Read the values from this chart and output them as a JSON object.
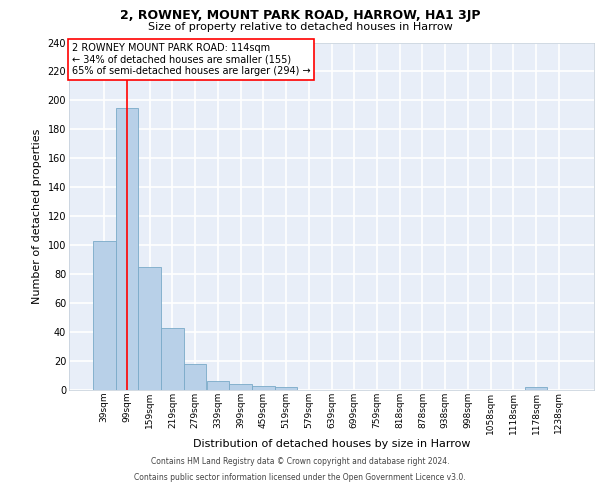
{
  "title1": "2, ROWNEY, MOUNT PARK ROAD, HARROW, HA1 3JP",
  "title2": "Size of property relative to detached houses in Harrow",
  "xlabel": "Distribution of detached houses by size in Harrow",
  "ylabel": "Number of detached properties",
  "bar_values": [
    103,
    195,
    85,
    43,
    18,
    6,
    4,
    3,
    2,
    0,
    0,
    0,
    0,
    0,
    0,
    0,
    0,
    0,
    0,
    2,
    0
  ],
  "bar_labels": [
    "39sqm",
    "99sqm",
    "159sqm",
    "219sqm",
    "279sqm",
    "339sqm",
    "399sqm",
    "459sqm",
    "519sqm",
    "579sqm",
    "639sqm",
    "699sqm",
    "759sqm",
    "818sqm",
    "878sqm",
    "938sqm",
    "998sqm",
    "1058sqm",
    "1118sqm",
    "1178sqm",
    "1238sqm"
  ],
  "bar_color": "#b8d0e8",
  "bar_edge_color": "#7aaac8",
  "ylim": [
    0,
    240
  ],
  "yticks": [
    0,
    20,
    40,
    60,
    80,
    100,
    120,
    140,
    160,
    180,
    200,
    220,
    240
  ],
  "annotation_line1": "2 ROWNEY MOUNT PARK ROAD: 114sqm",
  "annotation_line2": "← 34% of detached houses are smaller (155)",
  "annotation_line3": "65% of semi-detached houses are larger (294) →",
  "property_bar_index": 1,
  "bg_color": "#e8eef8",
  "grid_color": "#ffffff",
  "footer_line1": "Contains HM Land Registry data © Crown copyright and database right 2024.",
  "footer_line2": "Contains public sector information licensed under the Open Government Licence v3.0.",
  "title1_fontsize": 9,
  "title2_fontsize": 8,
  "xlabel_fontsize": 8,
  "ylabel_fontsize": 8,
  "tick_fontsize": 6.5,
  "annotation_fontsize": 7,
  "footer_fontsize": 5.5
}
